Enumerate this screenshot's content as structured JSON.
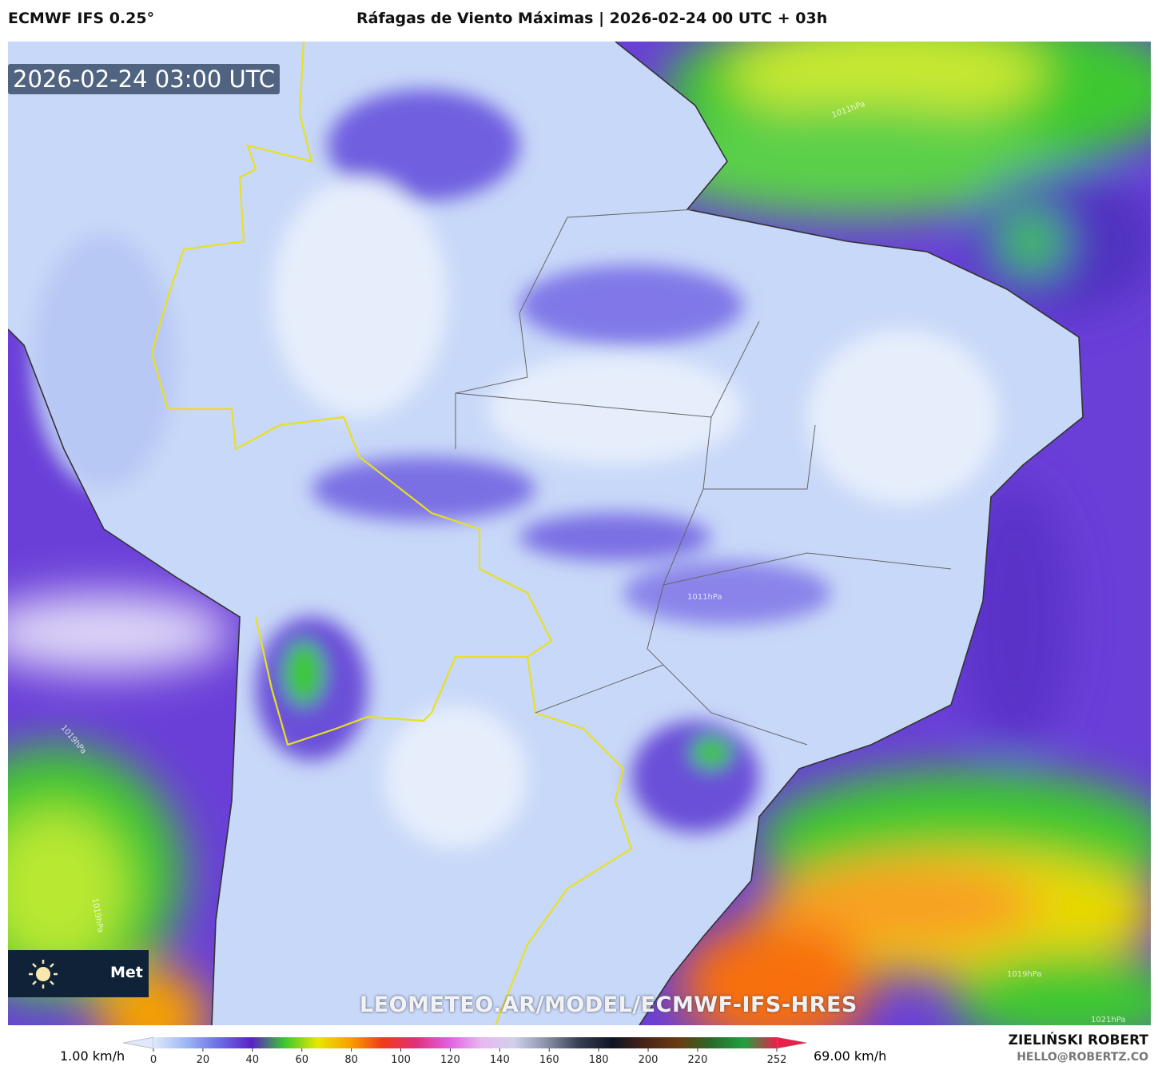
{
  "header": {
    "model": "ECMWF IFS 0.25°",
    "title": "Ráfagas de Viento Máximas | 2026-02-24 00 UTC + 03h"
  },
  "map": {
    "timestamp": "2026-02-24 03:00 UTC",
    "watermark": "LEOMETEO.AR/MODEL/ECMWF-IFS-HRES",
    "logo_text": "Met",
    "isobar_labels": [
      "1011hPa",
      "1011hPa",
      "1019hPa",
      "1019hPa",
      "1019hPa",
      "1021hPa"
    ]
  },
  "colorbar": {
    "min_label": "1.00 km/h",
    "max_label": "69.00 km/h",
    "lim": [
      0,
      252
    ],
    "ticks": [
      0,
      20,
      40,
      60,
      80,
      100,
      120,
      140,
      160,
      180,
      200,
      220,
      252
    ],
    "colors": [
      "#dfe9fb",
      "#9fb6f3",
      "#6b6de6",
      "#5a22c6",
      "#3cc832",
      "#e8e800",
      "#f8a000",
      "#f03a1a",
      "#e0307a",
      "#e060e0",
      "#e8b8f0",
      "#d0d0ec",
      "#8890a8",
      "#343c50",
      "#0e1424",
      "#4a2418",
      "#6a3a10",
      "#2a6a28",
      "#20a040",
      "#e8204a"
    ]
  },
  "credits": {
    "author": "ZIELIŃSKI ROBERT",
    "email": "HELLO@ROBERTZ.CO"
  }
}
